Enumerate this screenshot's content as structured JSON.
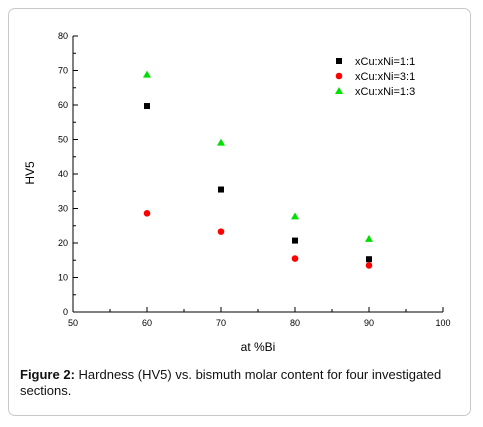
{
  "figure": {
    "caption_label": "Figure 2:",
    "caption_text": "Hardness (HV5) vs. bismuth molar content for four investigated sections."
  },
  "chart_data": {
    "type": "scatter",
    "title": "",
    "xlabel": "at %Bi",
    "ylabel": "HV5",
    "xlim": [
      50,
      100
    ],
    "ylim": [
      0,
      80
    ],
    "xticks": [
      50,
      60,
      70,
      80,
      90,
      100
    ],
    "yticks": [
      0,
      10,
      20,
      30,
      40,
      50,
      60,
      70,
      80
    ],
    "grid": false,
    "legend_position": "top-right",
    "series": [
      {
        "name": "xCu:xNi=1:1",
        "marker": "square",
        "color": "#000000",
        "x": [
          60,
          70,
          80,
          90
        ],
        "y": [
          59.7,
          35.5,
          20.7,
          15.3
        ]
      },
      {
        "name": "xCu:xNi=3:1",
        "marker": "circle",
        "color": "#ff0000",
        "x": [
          60,
          70,
          80,
          90
        ],
        "y": [
          28.6,
          23.3,
          15.5,
          13.5
        ]
      },
      {
        "name": "xCu:xNi=1:3",
        "marker": "triangle",
        "color": "#00e000",
        "x": [
          60,
          70,
          80,
          90
        ],
        "y": [
          68.8,
          49.1,
          27.7,
          21.2
        ]
      }
    ]
  }
}
